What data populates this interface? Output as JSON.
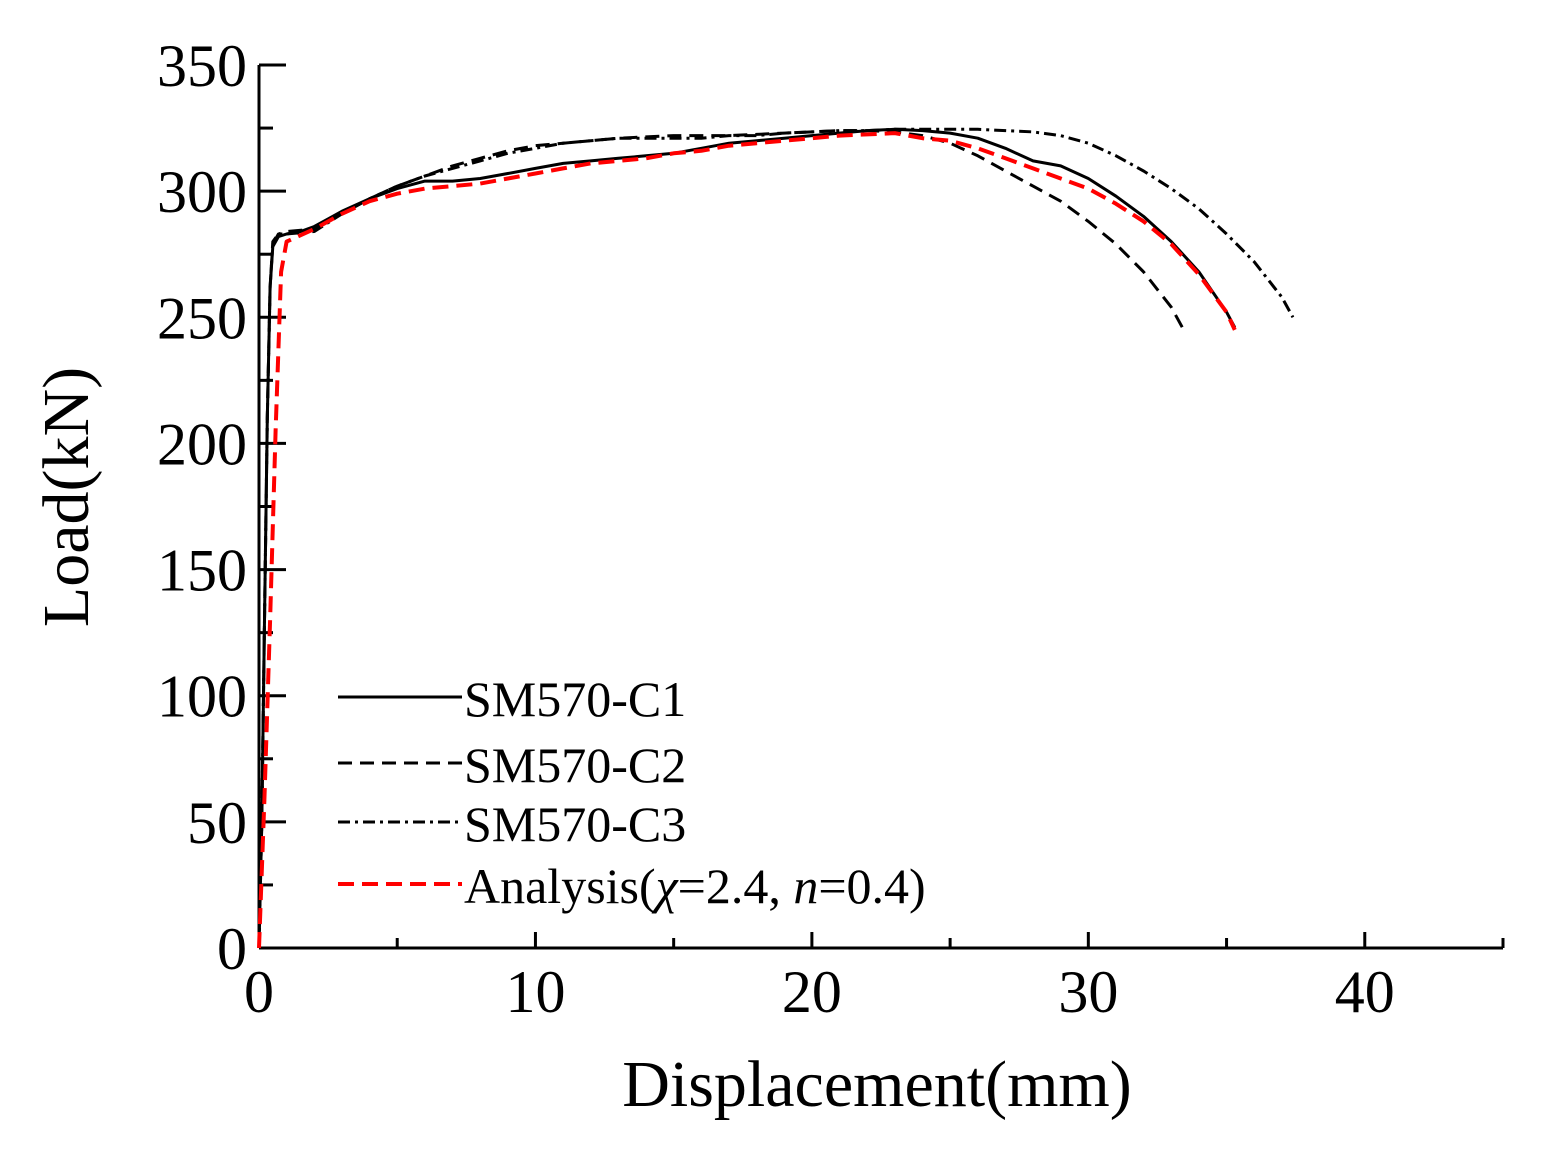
{
  "chart_data": {
    "type": "line",
    "xlabel": "Displacement(mm)",
    "ylabel": "Load(kN)",
    "xlim": [
      0,
      45
    ],
    "ylim": [
      0,
      350
    ],
    "x_major_ticks": [
      0,
      10,
      20,
      30,
      40
    ],
    "x_minor_ticks": [
      5,
      15,
      25,
      35,
      45
    ],
    "y_major_ticks": [
      0,
      50,
      100,
      150,
      200,
      250,
      300,
      350
    ],
    "y_minor_ticks": [
      25,
      75,
      125,
      175,
      225,
      275,
      325
    ],
    "legend_position": "lower-left",
    "grid": false,
    "series": [
      {
        "name": "SM570-C1",
        "style": "solid",
        "color": "#000000",
        "points": [
          [
            0,
            0
          ],
          [
            0.1,
            50
          ],
          [
            0.2,
            130
          ],
          [
            0.3,
            210
          ],
          [
            0.4,
            262
          ],
          [
            0.5,
            278
          ],
          [
            0.7,
            282
          ],
          [
            1.0,
            283
          ],
          [
            1.5,
            284
          ],
          [
            2.0,
            286
          ],
          [
            2.5,
            289
          ],
          [
            3.0,
            292
          ],
          [
            4.0,
            297
          ],
          [
            5.0,
            301
          ],
          [
            6.0,
            304
          ],
          [
            7.0,
            304
          ],
          [
            8.0,
            305
          ],
          [
            9.0,
            307
          ],
          [
            10.0,
            309
          ],
          [
            11.0,
            311
          ],
          [
            12.0,
            312
          ],
          [
            13.0,
            313
          ],
          [
            14.0,
            314
          ],
          [
            15.0,
            315
          ],
          [
            16.0,
            317
          ],
          [
            17.0,
            319
          ],
          [
            18.0,
            320
          ],
          [
            19.0,
            321
          ],
          [
            20.0,
            322
          ],
          [
            21.0,
            323
          ],
          [
            22.0,
            324
          ],
          [
            23.0,
            324.5
          ],
          [
            24.0,
            324
          ],
          [
            25.0,
            323
          ],
          [
            26.0,
            321
          ],
          [
            27.0,
            317
          ],
          [
            28.0,
            312
          ],
          [
            29.0,
            310
          ],
          [
            30.0,
            305
          ],
          [
            31.0,
            298
          ],
          [
            32.0,
            290
          ],
          [
            33.0,
            280
          ],
          [
            34.0,
            268
          ],
          [
            35.0,
            252
          ],
          [
            35.3,
            246
          ]
        ]
      },
      {
        "name": "SM570-C2",
        "style": "dashed",
        "color": "#000000",
        "points": [
          [
            0,
            0
          ],
          [
            0.1,
            50
          ],
          [
            0.2,
            130
          ],
          [
            0.3,
            210
          ],
          [
            0.4,
            262
          ],
          [
            0.5,
            279
          ],
          [
            0.7,
            283
          ],
          [
            1.0,
            284
          ],
          [
            2.0,
            285
          ],
          [
            3.0,
            291
          ],
          [
            4.0,
            297
          ],
          [
            5.0,
            302
          ],
          [
            6.0,
            306
          ],
          [
            7.0,
            310
          ],
          [
            8.0,
            313
          ],
          [
            9.0,
            316
          ],
          [
            10.0,
            318
          ],
          [
            11.0,
            319
          ],
          [
            12.0,
            320
          ],
          [
            13.0,
            321
          ],
          [
            14.0,
            321.5
          ],
          [
            15.0,
            322
          ],
          [
            16.0,
            322
          ],
          [
            17.0,
            322
          ],
          [
            18.0,
            322.5
          ],
          [
            19.0,
            323
          ],
          [
            20.0,
            323.5
          ],
          [
            21.0,
            324
          ],
          [
            22.0,
            324
          ],
          [
            23.0,
            323.5
          ],
          [
            24.0,
            322
          ],
          [
            25.0,
            319
          ],
          [
            26.0,
            314
          ],
          [
            27.0,
            308
          ],
          [
            28.0,
            302
          ],
          [
            29.0,
            296
          ],
          [
            30.0,
            288
          ],
          [
            31.0,
            279
          ],
          [
            32.0,
            268
          ],
          [
            33.0,
            254
          ],
          [
            33.4,
            246
          ]
        ]
      },
      {
        "name": "SM570-C3",
        "style": "dashdot",
        "color": "#000000",
        "points": [
          [
            0,
            0
          ],
          [
            0.1,
            50
          ],
          [
            0.2,
            130
          ],
          [
            0.3,
            210
          ],
          [
            0.4,
            262
          ],
          [
            0.5,
            280
          ],
          [
            0.7,
            283
          ],
          [
            1.0,
            283
          ],
          [
            2.0,
            284
          ],
          [
            3.0,
            291
          ],
          [
            4.0,
            297
          ],
          [
            5.0,
            302
          ],
          [
            6.0,
            306
          ],
          [
            7.0,
            309
          ],
          [
            8.0,
            312
          ],
          [
            9.0,
            315
          ],
          [
            10.0,
            317
          ],
          [
            11.0,
            319
          ],
          [
            12.0,
            320
          ],
          [
            13.0,
            321
          ],
          [
            14.0,
            321
          ],
          [
            15.0,
            321
          ],
          [
            16.0,
            321
          ],
          [
            17.0,
            322
          ],
          [
            18.0,
            322
          ],
          [
            19.0,
            323
          ],
          [
            20.0,
            323.5
          ],
          [
            21.0,
            324
          ],
          [
            22.0,
            324
          ],
          [
            23.0,
            324.5
          ],
          [
            24.0,
            324.5
          ],
          [
            25.0,
            324.5
          ],
          [
            26.0,
            324.5
          ],
          [
            27.0,
            324
          ],
          [
            28.0,
            323.5
          ],
          [
            29.0,
            322
          ],
          [
            30.0,
            319
          ],
          [
            31.0,
            314
          ],
          [
            32.0,
            308
          ],
          [
            33.0,
            301
          ],
          [
            34.0,
            293
          ],
          [
            35.0,
            283
          ],
          [
            36.0,
            272
          ],
          [
            37.0,
            258
          ],
          [
            37.4,
            250
          ]
        ]
      },
      {
        "name": "Analysis(χ=2.4, n=0.4)",
        "style": "dashed",
        "color": "#ff0000",
        "points": [
          [
            0,
            0
          ],
          [
            0.2,
            60
          ],
          [
            0.4,
            130
          ],
          [
            0.6,
            205
          ],
          [
            0.8,
            268
          ],
          [
            1.0,
            280
          ],
          [
            2.0,
            285
          ],
          [
            3.0,
            291
          ],
          [
            4.0,
            296
          ],
          [
            5.0,
            299
          ],
          [
            6.0,
            301
          ],
          [
            7.0,
            302
          ],
          [
            8.0,
            303
          ],
          [
            9.0,
            305
          ],
          [
            10.0,
            307
          ],
          [
            11.0,
            309
          ],
          [
            12.0,
            311
          ],
          [
            13.0,
            312
          ],
          [
            14.0,
            313
          ],
          [
            15.0,
            315
          ],
          [
            16.0,
            316
          ],
          [
            17.0,
            318
          ],
          [
            18.0,
            319
          ],
          [
            19.0,
            320
          ],
          [
            20.0,
            321
          ],
          [
            21.0,
            322
          ],
          [
            22.0,
            322.5
          ],
          [
            23.0,
            323
          ],
          [
            24.0,
            321
          ],
          [
            25.0,
            320
          ],
          [
            26.0,
            317
          ],
          [
            27.0,
            313
          ],
          [
            28.0,
            309
          ],
          [
            29.0,
            305
          ],
          [
            30.0,
            301
          ],
          [
            31.0,
            295
          ],
          [
            32.0,
            288
          ],
          [
            33.0,
            279
          ],
          [
            34.0,
            267
          ],
          [
            35.0,
            252
          ],
          [
            35.3,
            245
          ]
        ]
      }
    ]
  },
  "legend": {
    "items": [
      {
        "label": "SM570-C1"
      },
      {
        "label": "SM570-C2"
      },
      {
        "label": "SM570-C3"
      },
      {
        "label_prefix": "Analysis(",
        "chi_symbol": "χ",
        "chi_value": "=2.4, ",
        "n_symbol": "n",
        "n_value": "=0.4)"
      }
    ]
  }
}
